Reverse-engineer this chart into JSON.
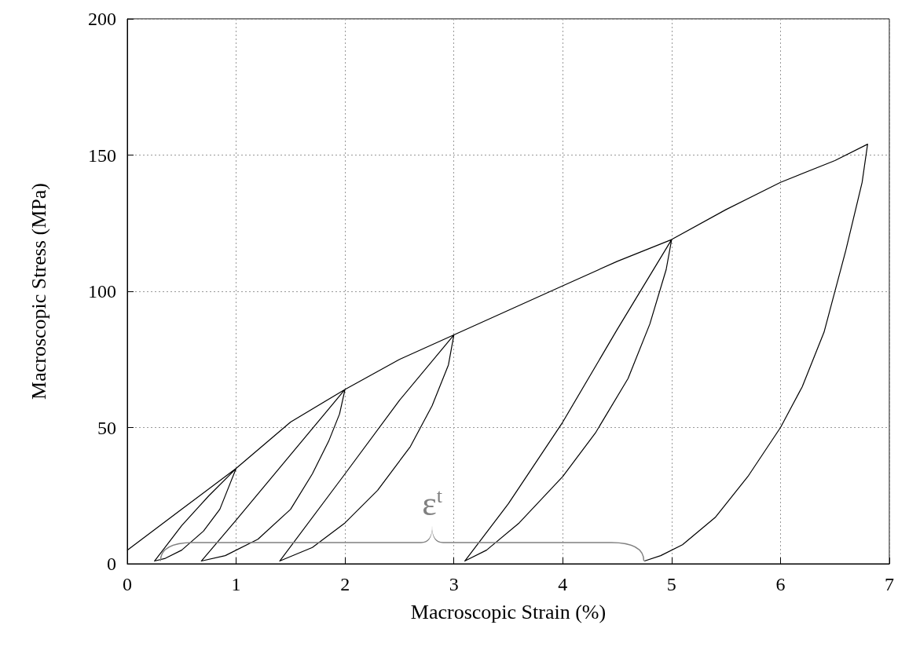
{
  "chart_data": {
    "type": "line",
    "xlabel": "Macroscopic Strain (%)",
    "ylabel": "Macroscopic Stress (MPa)",
    "xlim": [
      0,
      7
    ],
    "xticks": [
      0,
      1,
      2,
      3,
      4,
      5,
      6,
      7
    ],
    "ylim": [
      0,
      200
    ],
    "yticks": [
      0,
      50,
      100,
      150,
      200
    ],
    "grid": true,
    "marker": "none",
    "annotations": [
      "ε$^{t}$"
    ],
    "series": [
      {
        "color": "#000000",
        "x": [
          0,
          0.5,
          1,
          0.95,
          0.85,
          0.7,
          0.5,
          0.35,
          0.25,
          0.5,
          0.75,
          1,
          1.5,
          2,
          1.95,
          1.85,
          1.7,
          1.5,
          1.2,
          0.9,
          0.68,
          1,
          1.5,
          2,
          2.5,
          3,
          2.95,
          2.8,
          2.6,
          2.3,
          2,
          1.7,
          1.4,
          2,
          2.5,
          3,
          3.5,
          4,
          4.5,
          5,
          4.95,
          4.8,
          4.6,
          4.3,
          4,
          3.6,
          3.3,
          3.1,
          3.5,
          4,
          4.5,
          5,
          5.5,
          6,
          6.5,
          6.8,
          6.75,
          6.6,
          6.4,
          6.2,
          6,
          5.7,
          5.4,
          5.1,
          4.9,
          4.75
        ],
        "values": [
          5,
          20,
          35,
          30,
          20,
          12,
          5,
          2,
          1,
          14,
          25,
          35,
          52,
          64,
          55,
          45,
          33,
          20,
          9,
          3,
          1,
          16,
          40,
          64,
          75,
          84,
          73,
          58,
          43,
          27,
          15,
          6,
          1,
          33,
          60,
          84,
          93,
          102,
          111,
          119,
          108,
          88,
          68,
          48,
          32,
          15,
          5,
          1,
          22,
          52,
          86,
          119,
          130,
          140,
          148,
          154,
          140,
          115,
          85,
          65,
          50,
          32,
          17,
          7,
          3,
          1
        ]
      }
    ]
  }
}
